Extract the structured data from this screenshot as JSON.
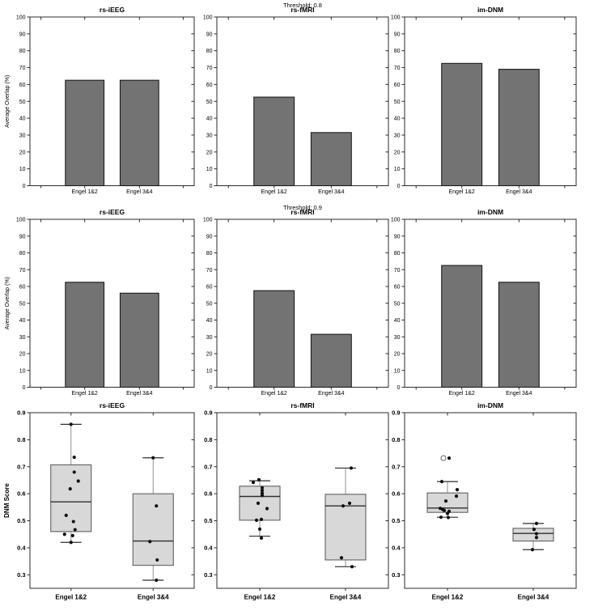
{
  "figure": {
    "background": "#ffffff",
    "colors": {
      "bar_fill": "#737373",
      "bar_edge": "#1c1c1c",
      "box_fill": "#d8d8d8",
      "box_edge": "#606060",
      "median_line": "#2f2f2f",
      "whisker_line": "#909090",
      "whisker_cap": "#2f2f2f",
      "data_point": "#101010",
      "outlier_edge": "#707070",
      "axis_line": "#2b2b2b",
      "text": "#000000"
    }
  },
  "chart_data": {
    "suptitles": [
      {
        "text": "Threshold: 0.8",
        "row": 0
      },
      {
        "text": "Threshold: 0.9",
        "row": 1
      }
    ],
    "panels": [
      {
        "row": 0,
        "col": 0,
        "type": "bar",
        "title": "rs-iEEG",
        "ylabel": "Average Overlap (%)",
        "ylim": [
          0,
          100
        ],
        "yticks": [
          0,
          10,
          20,
          30,
          40,
          50,
          60,
          70,
          80,
          90,
          100
        ],
        "categories": [
          "Engel 1&2",
          "Engel 3&4"
        ],
        "values": [
          62.5,
          62.5
        ]
      },
      {
        "row": 0,
        "col": 1,
        "type": "bar",
        "title": "rs-fMRI",
        "ylabel": null,
        "ylim": [
          0,
          100
        ],
        "yticks": [
          0,
          10,
          20,
          30,
          40,
          50,
          60,
          70,
          80,
          90,
          100
        ],
        "categories": [
          "Engel 1&2",
          "Engel 3&4"
        ],
        "values": [
          52.5,
          31.5
        ]
      },
      {
        "row": 0,
        "col": 2,
        "type": "bar",
        "title": "im-DNM",
        "ylabel": null,
        "ylim": [
          0,
          100
        ],
        "yticks": [
          0,
          10,
          20,
          30,
          40,
          50,
          60,
          70,
          80,
          90,
          100
        ],
        "categories": [
          "Engel 1&2",
          "Engel 3&4"
        ],
        "values": [
          72.5,
          69
        ]
      },
      {
        "row": 1,
        "col": 0,
        "type": "bar",
        "title": "rs-iEEG",
        "ylabel": "Average Overlap (%)",
        "ylim": [
          0,
          100
        ],
        "yticks": [
          0,
          10,
          20,
          30,
          40,
          50,
          60,
          70,
          80,
          90,
          100
        ],
        "categories": [
          "Engel 1&2",
          "Engel 3&4"
        ],
        "values": [
          62.5,
          56
        ]
      },
      {
        "row": 1,
        "col": 1,
        "type": "bar",
        "title": "rs-fMRI",
        "ylabel": null,
        "ylim": [
          0,
          100
        ],
        "yticks": [
          0,
          10,
          20,
          30,
          40,
          50,
          60,
          70,
          80,
          90,
          100
        ],
        "categories": [
          "Engel 1&2",
          "Engel 3&4"
        ],
        "values": [
          57.5,
          31.5
        ]
      },
      {
        "row": 1,
        "col": 2,
        "type": "bar",
        "title": "im-DNM",
        "ylabel": null,
        "ylim": [
          0,
          100
        ],
        "yticks": [
          0,
          10,
          20,
          30,
          40,
          50,
          60,
          70,
          80,
          90,
          100
        ],
        "categories": [
          "Engel 1&2",
          "Engel 3&4"
        ],
        "values": [
          72.5,
          62.5
        ]
      },
      {
        "row": 2,
        "col": 0,
        "type": "box",
        "title": "rs-iEEG",
        "ylabel": "DNM Score",
        "ylim": [
          0.25,
          0.9
        ],
        "yticks": [
          0.3,
          0.4,
          0.5,
          0.6,
          0.7,
          0.8,
          0.9
        ],
        "groups": [
          {
            "label": "Engel 1&2",
            "whisker_low": 0.42,
            "q1": 0.46,
            "median": 0.57,
            "q3": 0.707,
            "whisker_high": 0.857,
            "outliers": [],
            "points": [
              [
                0,
                0.857
              ],
              [
                4,
                0.735
              ],
              [
                4,
                0.68
              ],
              [
                9,
                0.647
              ],
              [
                -1,
                0.618
              ],
              [
                -6,
                0.52
              ],
              [
                3,
                0.497
              ],
              [
                5,
                0.467
              ],
              [
                -8,
                0.45
              ],
              [
                2,
                0.445
              ],
              [
                0,
                0.42
              ]
            ]
          },
          {
            "label": "Engel 3&4",
            "whisker_low": 0.28,
            "q1": 0.335,
            "median": 0.425,
            "q3": 0.6,
            "whisker_high": 0.733,
            "outliers": [],
            "points": [
              [
                0,
                0.733
              ],
              [
                4,
                0.555
              ],
              [
                -4,
                0.423
              ],
              [
                5,
                0.355
              ],
              [
                4,
                0.28
              ]
            ]
          }
        ]
      },
      {
        "row": 2,
        "col": 1,
        "type": "box",
        "title": "rs-fMRI",
        "ylabel": null,
        "ylim": [
          0.25,
          0.9
        ],
        "yticks": [
          0.3,
          0.4,
          0.5,
          0.6,
          0.7,
          0.8,
          0.9
        ],
        "groups": [
          {
            "label": "Engel 1&2",
            "whisker_low": 0.443,
            "q1": 0.502,
            "median": 0.59,
            "q3": 0.628,
            "whisker_high": 0.648,
            "outliers": [],
            "points": [
              [
                -8,
                0.642
              ],
              [
                -1,
                0.652
              ],
              [
                3,
                0.622
              ],
              [
                3,
                0.612
              ],
              [
                3,
                0.602
              ],
              [
                3,
                0.594
              ],
              [
                -2,
                0.565
              ],
              [
                9,
                0.545
              ],
              [
                -4,
                0.502
              ],
              [
                2,
                0.505
              ],
              [
                0,
                0.469
              ],
              [
                2,
                0.436
              ]
            ]
          },
          {
            "label": "Engel 3&4",
            "whisker_low": 0.33,
            "q1": 0.355,
            "median": 0.555,
            "q3": 0.598,
            "whisker_high": 0.695,
            "outliers": [],
            "points": [
              [
                7,
                0.695
              ],
              [
                5,
                0.565
              ],
              [
                -3,
                0.555
              ],
              [
                -5,
                0.363
              ],
              [
                8,
                0.33
              ]
            ]
          }
        ]
      },
      {
        "row": 2,
        "col": 2,
        "type": "box",
        "title": "im-DNM",
        "ylabel": null,
        "ylim": [
          0.25,
          0.9
        ],
        "yticks": [
          0.3,
          0.4,
          0.5,
          0.6,
          0.7,
          0.8,
          0.9
        ],
        "groups": [
          {
            "label": "Engel 1&2",
            "whisker_low": 0.513,
            "q1": 0.531,
            "median": 0.547,
            "q3": 0.603,
            "whisker_high": 0.645,
            "outliers": [
              [
                -5,
                0.732
              ]
            ],
            "points": [
              [
                2,
                0.732
              ],
              [
                -7,
                0.645
              ],
              [
                12,
                0.615
              ],
              [
                11,
                0.591
              ],
              [
                -2,
                0.573
              ],
              [
                -9,
                0.546
              ],
              [
                -6,
                0.542
              ],
              [
                -4,
                0.538
              ],
              [
                2,
                0.535
              ],
              [
                0,
                0.527
              ],
              [
                -8,
                0.513
              ],
              [
                1,
                0.512
              ]
            ]
          },
          {
            "label": "Engel 3&4",
            "whisker_low": 0.393,
            "q1": 0.425,
            "median": 0.453,
            "q3": 0.472,
            "whisker_high": 0.49,
            "outliers": [],
            "points": [
              [
                4,
                0.49
              ],
              [
                1,
                0.468
              ],
              [
                4,
                0.452
              ],
              [
                4,
                0.438
              ],
              [
                -1,
                0.393
              ]
            ]
          }
        ]
      }
    ]
  }
}
